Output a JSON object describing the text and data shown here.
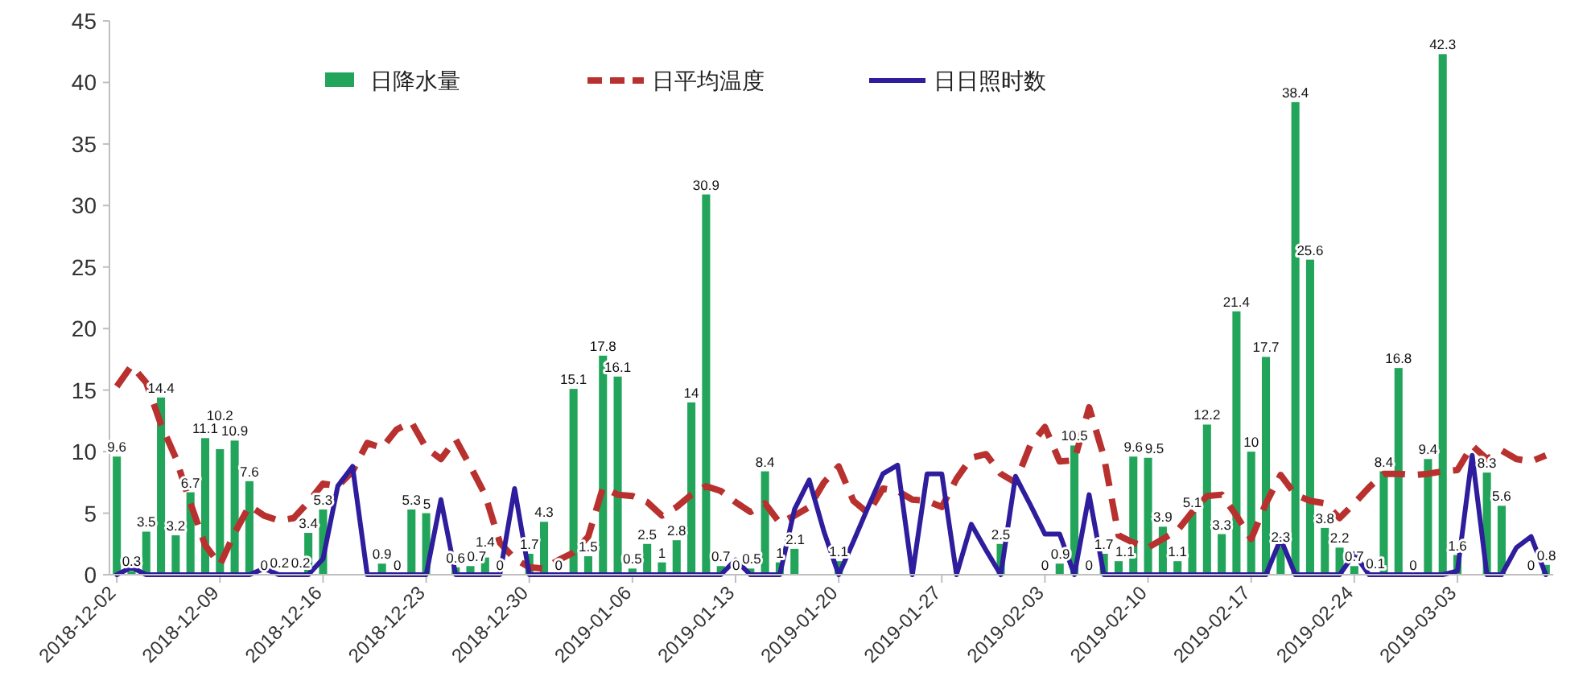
{
  "chart_data": {
    "type": "bar",
    "legend": "top",
    "grid": false,
    "xlim": [
      "2018-12-01T12:00",
      "2019-03-09T12:00"
    ],
    "xticks": [
      "2018-12-02",
      "2018-12-09",
      "2018-12-16",
      "2018-12-23",
      "2018-12-30",
      "2019-01-06",
      "2019-01-13",
      "2019-01-20",
      "2019-01-27",
      "2019-02-03",
      "2019-02-10",
      "2019-02-17",
      "2019-02-24",
      "2019-03-03"
    ],
    "ylim": [
      0,
      45
    ],
    "yticks": [
      0,
      5,
      10,
      15,
      20,
      25,
      30,
      35,
      40,
      45
    ],
    "x": [
      "2018-12-02",
      "2018-12-03",
      "2018-12-04",
      "2018-12-05",
      "2018-12-06",
      "2018-12-07",
      "2018-12-08",
      "2018-12-09",
      "2018-12-10",
      "2018-12-11",
      "2018-12-12",
      "2018-12-13",
      "2018-12-14",
      "2018-12-15",
      "2018-12-16",
      "2018-12-17",
      "2018-12-18",
      "2018-12-19",
      "2018-12-20",
      "2018-12-21",
      "2018-12-22",
      "2018-12-23",
      "2018-12-24",
      "2018-12-25",
      "2018-12-26",
      "2018-12-27",
      "2018-12-28",
      "2018-12-29",
      "2018-12-30",
      "2018-12-31",
      "2019-01-01",
      "2019-01-02",
      "2019-01-03",
      "2019-01-04",
      "2019-01-05",
      "2019-01-06",
      "2019-01-07",
      "2019-01-08",
      "2019-01-09",
      "2019-01-10",
      "2019-01-11",
      "2019-01-12",
      "2019-01-13",
      "2019-01-14",
      "2019-01-15",
      "2019-01-16",
      "2019-01-17",
      "2019-01-18",
      "2019-01-19",
      "2019-01-20",
      "2019-01-21",
      "2019-01-22",
      "2019-01-23",
      "2019-01-24",
      "2019-01-25",
      "2019-01-26",
      "2019-01-27",
      "2019-01-28",
      "2019-01-29",
      "2019-01-30",
      "2019-01-31",
      "2019-02-01",
      "2019-02-02",
      "2019-02-03",
      "2019-02-04",
      "2019-02-05",
      "2019-02-06",
      "2019-02-07",
      "2019-02-08",
      "2019-02-09",
      "2019-02-10",
      "2019-02-11",
      "2019-02-12",
      "2019-02-13",
      "2019-02-14",
      "2019-02-15",
      "2019-02-16",
      "2019-02-17",
      "2019-02-18",
      "2019-02-19",
      "2019-02-20",
      "2019-02-21",
      "2019-02-22",
      "2019-02-23",
      "2019-02-24",
      "2019-02-25",
      "2019-02-26",
      "2019-02-27",
      "2019-02-28",
      "2019-03-01",
      "2019-03-02",
      "2019-03-03",
      "2019-03-04",
      "2019-03-05",
      "2019-03-06",
      "2019-03-07",
      "2019-03-08",
      "2019-03-09"
    ],
    "series": [
      {
        "name": "日降水量",
        "color": "#22a55a",
        "values": [
          9.6,
          0.3,
          3.5,
          14.4,
          3.2,
          6.7,
          11.1,
          10.2,
          10.9,
          7.6,
          0,
          0.2,
          0.2,
          3.4,
          5.3,
          null,
          null,
          null,
          0.9,
          0,
          5.3,
          5,
          null,
          0.6,
          0.7,
          1.4,
          0,
          null,
          1.7,
          4.3,
          0,
          15.1,
          1.5,
          17.8,
          16.1,
          0.5,
          2.5,
          1,
          2.8,
          14,
          30.9,
          0.7,
          0,
          0.5,
          8.4,
          1,
          2.1,
          null,
          null,
          1.1,
          null,
          null,
          null,
          null,
          null,
          null,
          null,
          null,
          null,
          null,
          2.5,
          null,
          null,
          0,
          0.9,
          10.5,
          0,
          1.7,
          1.1,
          9.6,
          9.5,
          3.9,
          1.1,
          5.1,
          12.2,
          3.3,
          21.4,
          10,
          17.7,
          2.3,
          38.4,
          25.6,
          3.8,
          2.2,
          0.7,
          0.1,
          8.4,
          16.8,
          0,
          9.4,
          42.3,
          1.6,
          null,
          8.3,
          5.6,
          null,
          0,
          0.8
        ],
        "value_labels": [
          "9.6",
          "0.3",
          "3.5",
          "14.4",
          "3.2",
          "6.7",
          "11.1",
          "10.2",
          "10.9",
          "7.6",
          "0",
          "0.2",
          "0.2",
          "3.4",
          "5.3",
          null,
          null,
          null,
          "0.9",
          "0",
          "5.3",
          "5",
          null,
          "0.6",
          "0.7",
          "1.4",
          "0",
          null,
          "1.7",
          "4.3",
          "0",
          "15.1",
          "1.5",
          "17.8",
          "16.1",
          "0.5",
          "2.5",
          "1",
          "2.8",
          "14",
          "30.9",
          "0.7",
          "0",
          "0.5",
          "8.4",
          "1",
          "2.1",
          null,
          null,
          "1.1",
          null,
          null,
          null,
          null,
          null,
          null,
          null,
          null,
          null,
          null,
          "2.5",
          null,
          null,
          "0",
          "0.9",
          "10.5",
          "0",
          "1.7",
          "1.1",
          "9.6",
          "9.5",
          "3.9",
          "1.1",
          "5.1",
          "12.2",
          "3.3",
          "21.4",
          "10",
          "17.7",
          "2.3",
          "38.4",
          "25.6",
          "3.8",
          "2.2",
          "0.7",
          "0.1",
          "8.4",
          "16.8",
          "0",
          "9.4",
          "42.3",
          "1.6",
          null,
          "8.3",
          "5.6",
          null,
          "0",
          "0.8"
        ]
      },
      {
        "name": "日平均温度",
        "type": "line",
        "line_style": "dashed",
        "color": "#b8312f",
        "values": [
          15.3,
          17.0,
          15.6,
          12.2,
          9.5,
          5.8,
          2.4,
          0.8,
          3.4,
          5.6,
          4.8,
          4.4,
          4.6,
          5.9,
          7.4,
          7.2,
          8.4,
          10.7,
          10.3,
          11.8,
          12.4,
          10.3,
          9.4,
          11.0,
          8.8,
          6.5,
          2.6,
          1.3,
          0.6,
          0.5,
          1.2,
          1.8,
          3.1,
          7.1,
          6.5,
          6.4,
          5.9,
          4.8,
          5.5,
          6.5,
          7.2,
          6.8,
          5.9,
          5.1,
          5.8,
          4.2,
          4.8,
          5.5,
          7.5,
          8.8,
          6.0,
          5.0,
          7.0,
          6.8,
          6.1,
          6.0,
          5.5,
          7.8,
          9.5,
          9.8,
          8.2,
          7.5,
          10.5,
          12.0,
          9.2,
          9.3,
          13.6,
          9.6,
          3.2,
          2.6,
          2.2,
          2.9,
          3.6,
          5.1,
          6.4,
          6.5,
          4.8,
          2.9,
          5.8,
          8.1,
          6.5,
          6.0,
          5.8,
          4.6,
          5.8,
          7.1,
          8.2,
          8.2,
          8.1,
          8.2,
          8.4,
          8.5,
          10.5,
          9.4,
          10.1,
          9.4,
          9.2,
          9.7
        ]
      },
      {
        "name": "日日照时数",
        "type": "line",
        "line_style": "solid",
        "color": "#2e1d9c",
        "values": [
          0,
          0.6,
          0,
          0,
          0,
          0,
          0,
          0,
          0,
          0,
          0.5,
          0,
          0,
          0,
          1.3,
          7.2,
          8.8,
          0,
          0,
          0,
          0,
          0,
          6.1,
          0,
          0,
          0,
          0,
          7,
          0,
          0,
          0,
          0,
          0,
          0,
          0,
          0,
          0,
          0,
          0,
          0,
          0,
          0,
          1.2,
          0,
          0,
          0,
          5.3,
          7.7,
          3.5,
          0,
          2.7,
          5.5,
          8.2,
          8.9,
          0,
          8.2,
          8.2,
          0,
          4.1,
          2,
          0,
          8,
          5.7,
          3.3,
          3.3,
          0,
          6.5,
          0,
          0,
          0,
          0,
          0,
          0,
          0,
          0,
          0,
          0,
          0,
          0,
          2.9,
          0,
          0,
          0,
          0,
          1.7,
          0,
          0,
          0,
          0,
          0,
          0,
          0.3,
          9.7,
          0,
          0,
          2.2,
          3.1,
          0
        ]
      }
    ]
  }
}
